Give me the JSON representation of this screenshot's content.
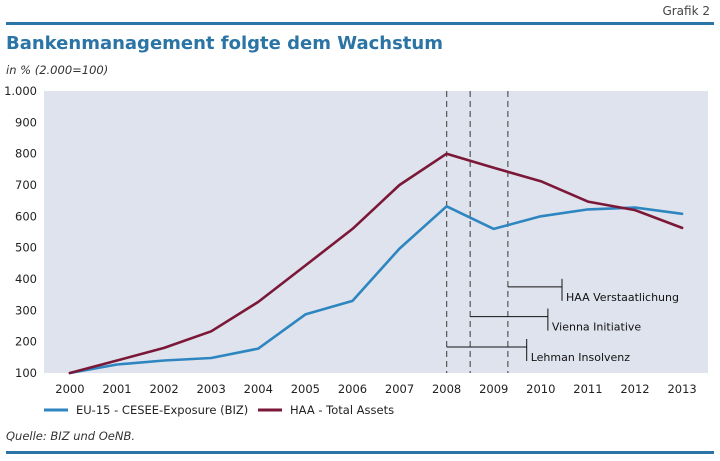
{
  "header": {
    "label": "Grafik 2",
    "title": "Bankenmanagement folgte dem Wachstum",
    "subtitle": "in % (2.000=100)"
  },
  "footer": {
    "source": "Quelle: BIZ und OeNB."
  },
  "colors": {
    "accent": "#2b74a6",
    "series_blue": "#2e86c1",
    "series_maroon": "#7b1838",
    "plot_bg": "#dfe3ed",
    "dashed": "#555555"
  },
  "chart_data": {
    "type": "line",
    "x": [
      2000,
      2001,
      2002,
      2003,
      2004,
      2005,
      2006,
      2007,
      2008,
      2009,
      2010,
      2011,
      2012,
      2013
    ],
    "x_tick_labels": [
      "2000",
      "2001",
      "2002",
      "2003",
      "2004",
      "2005",
      "2006",
      "2007",
      "2008",
      "2009",
      "2010",
      "2011",
      "2012",
      "2013"
    ],
    "y_ticks": [
      100,
      200,
      300,
      400,
      500,
      600,
      700,
      800,
      900,
      1000
    ],
    "y_tick_labels": [
      "100",
      "200",
      "300",
      "400",
      "500",
      "600",
      "700",
      "800",
      "900",
      "1.000"
    ],
    "ylim": [
      100,
      1000
    ],
    "xlim": [
      1999.45,
      2013.55
    ],
    "grid": false,
    "legend_position": "bottom",
    "series": [
      {
        "name": "EU-15 - CESEE-Exposure (BIZ)",
        "color": "#2e86c1",
        "values": [
          100,
          127,
          140,
          148,
          178,
          287,
          330,
          497,
          632,
          560,
          600,
          622,
          628,
          608
        ]
      },
      {
        "name": "HAA - Total Assets",
        "color": "#7b1838",
        "values": [
          100,
          140,
          180,
          233,
          327,
          443,
          560,
          700,
          800,
          755,
          712,
          647,
          620,
          563
        ]
      }
    ],
    "annotations": [
      {
        "text": "HAA Verstaatlichung",
        "x_start": 2009.3,
        "x_end": 2010.45,
        "y": 375
      },
      {
        "text": "Vienna Initiative",
        "x_start": 2008.5,
        "x_end": 2010.15,
        "y": 280
      },
      {
        "text": "Lehman Insolvenz",
        "x_start": 2008.0,
        "x_end": 2009.7,
        "y": 183
      }
    ],
    "vlines": [
      2008.0,
      2008.5,
      2009.3
    ]
  }
}
